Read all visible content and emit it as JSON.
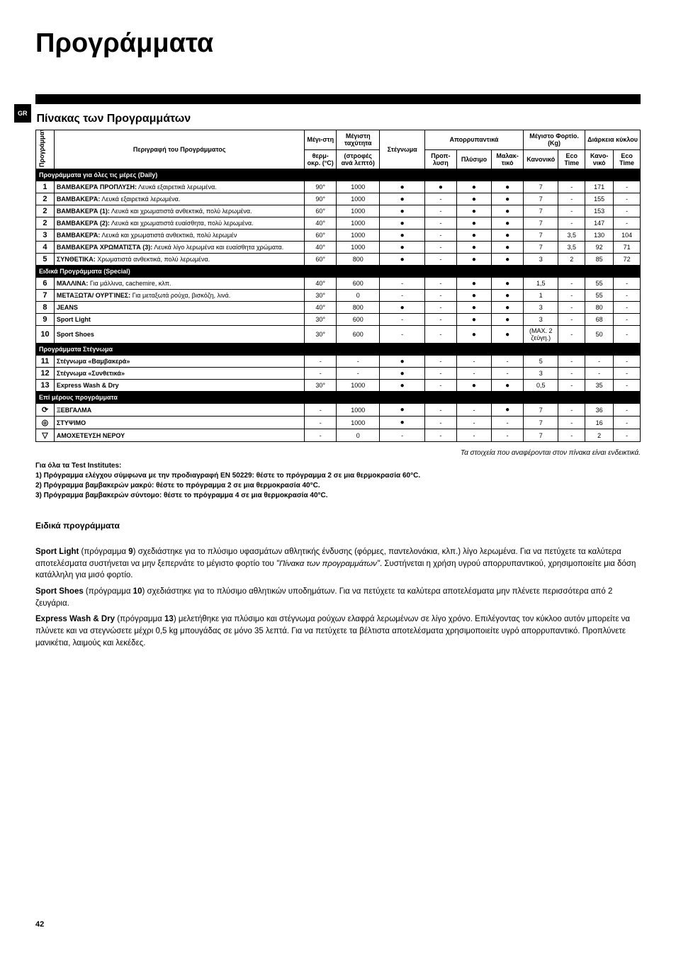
{
  "title": "Προγράμματα",
  "lang_badge": "GR",
  "table_heading": "Πίνακας των Προγραμμάτων",
  "headers": {
    "prog": "Προγράμματα",
    "desc": "Περιγραφή του Προγράμματος",
    "temp_top": "Μέγι-στη",
    "temp_bot": "θερμ-οκρ. (°C)",
    "speed_top": "Μέγιστη ταχύτητα",
    "speed_bot": "(στροφές ανά λεπτό)",
    "dry": "Στέγνωμα",
    "deterg": "Απορρυπαντικά",
    "d1": "Προπ-λυση",
    "d2": "Πλύσιμο",
    "d3": "Μαλακ-τικό",
    "load": "Μέγιστο Φορτίο. (Kg)",
    "l1": "Κανονικό",
    "l2": "Eco Time",
    "dur": "Διάρκεια κύκλου",
    "du1": "Κανο-νικό",
    "du2": "Eco Time"
  },
  "sections": [
    {
      "title": "Προγράμματα για όλες τις μέρες  (Daily)",
      "rows": [
        {
          "n": "1",
          "desc": "ΒΑΜΒΑΚΕΡΆ ΠΡΟΠΛΥΣΗ: Λευκά εξαιρετικά λερωμένα.",
          "temp": "90°",
          "spd": "1000",
          "dry": "●",
          "d1": "●",
          "d2": "●",
          "d3": "●",
          "l1": "7",
          "l2": "-",
          "du1": "171",
          "du2": "-"
        },
        {
          "n": "2",
          "desc": "ΒΑΜΒΑΚΕΡΆ: Λευκά εξαιρετικά λερωμένα.",
          "temp": "90°",
          "spd": "1000",
          "dry": "●",
          "d1": "-",
          "d2": "●",
          "d3": "●",
          "l1": "7",
          "l2": "-",
          "du1": "155",
          "du2": "-"
        },
        {
          "n": "2",
          "desc": "ΒΑΜΒΑΚΕΡΆ (1): Λευκά και χρωματιστά ανθεκτικά, πολύ λερωμένα.",
          "temp": "60°",
          "spd": "1000",
          "dry": "●",
          "d1": "-",
          "d2": "●",
          "d3": "●",
          "l1": "7",
          "l2": "-",
          "du1": "153",
          "du2": "-"
        },
        {
          "n": "2",
          "desc": "ΒΑΜΒΑΚΕΡΆ (2): Λευκά και χρωματιστά ευαίσθητα, πολύ λερωμένα.",
          "temp": "40°",
          "spd": "1000",
          "dry": "●",
          "d1": "-",
          "d2": "●",
          "d3": "●",
          "l1": "7",
          "l2": "-",
          "du1": "147",
          "du2": "-"
        },
        {
          "n": "3",
          "desc": "ΒΑΜΒΑΚΕΡΆ: Λευκά και χρωματιστά ανθεκτικά, πολύ λερωμέν",
          "temp": "60°",
          "spd": "1000",
          "dry": "●",
          "d1": "-",
          "d2": "●",
          "d3": "●",
          "l1": "7",
          "l2": "3,5",
          "du1": "130",
          "du2": "104"
        },
        {
          "n": "4",
          "desc": "ΒΑΜΒΑΚΕΡΆ ΧΡΩΜΑΤΙΣΤΆ (3): Λευκά λίγο λερωμένα και ευαίσθητα χρώματα.",
          "temp": "40°",
          "spd": "1000",
          "dry": "●",
          "d1": "-",
          "d2": "●",
          "d3": "●",
          "l1": "7",
          "l2": "3,5",
          "du1": "92",
          "du2": "71"
        },
        {
          "n": "5",
          "desc": "ΣΥΝΘΕΤΙΚΑ: Χρωματιστά ανθεκτικά, πολύ λερωμένα.",
          "temp": "60°",
          "spd": "800",
          "dry": "●",
          "d1": "-",
          "d2": "●",
          "d3": "●",
          "l1": "3",
          "l2": "2",
          "du1": "85",
          "du2": "72"
        }
      ]
    },
    {
      "title": "Ειδικά Προγράμματα (Special)",
      "rows": [
        {
          "n": "6",
          "desc": "ΜΆΛΛΙΝΑ: Για μάλλινα, cachemire, κλπ.",
          "temp": "40°",
          "spd": "600",
          "dry": "-",
          "d1": "-",
          "d2": "●",
          "d3": "●",
          "l1": "1,5",
          "l2": "-",
          "du1": "55",
          "du2": "-"
        },
        {
          "n": "7",
          "desc": "ΜΕΤΑΞΩΤΆ/ ΟΥΡΤΊΝΕΣ: Για μεταξωτά ρούχα, βισκόζη, λινά.",
          "temp": "30°",
          "spd": "0",
          "dry": "-",
          "d1": "-",
          "d2": "●",
          "d3": "●",
          "l1": "1",
          "l2": "-",
          "du1": "55",
          "du2": "-"
        },
        {
          "n": "8",
          "desc": "JEANS",
          "temp": "40°",
          "spd": "800",
          "dry": "●",
          "d1": "-",
          "d2": "●",
          "d3": "●",
          "l1": "3",
          "l2": "-",
          "du1": "80",
          "du2": "-"
        },
        {
          "n": "9",
          "desc": "Sport Light",
          "temp": "30°",
          "spd": "600",
          "dry": "-",
          "d1": "-",
          "d2": "●",
          "d3": "●",
          "l1": "3",
          "l2": "-",
          "du1": "68",
          "du2": "-"
        },
        {
          "n": "10",
          "desc": "Sport Shoes",
          "temp": "30°",
          "spd": "600",
          "dry": "-",
          "d1": "-",
          "d2": "●",
          "d3": "●",
          "l1": "(MAX. 2 ζεύγη.)",
          "l2": "-",
          "du1": "50",
          "du2": "-"
        }
      ]
    },
    {
      "title": "Προγράμματα Στέγνωμα",
      "rows": [
        {
          "n": "11",
          "desc": "Στέγνωμα «Βαμβακερά»",
          "temp": "-",
          "spd": "-",
          "dry": "●",
          "d1": "-",
          "d2": "-",
          "d3": "-",
          "l1": "5",
          "l2": "-",
          "du1": "-",
          "du2": "-"
        },
        {
          "n": "12",
          "desc": "Στέγνωμα «Συνθετικά»",
          "temp": "-",
          "spd": "-",
          "dry": "●",
          "d1": "-",
          "d2": "-",
          "d3": "-",
          "l1": "3",
          "l2": "-",
          "du1": "-",
          "du2": "-"
        },
        {
          "n": "13",
          "desc": "Express Wash & Dry",
          "temp": "30°",
          "spd": "1000",
          "dry": "●",
          "d1": "-",
          "d2": "●",
          "d3": "●",
          "l1": "0,5",
          "l2": "-",
          "du1": "35",
          "du2": "-"
        }
      ]
    },
    {
      "title": "Επί μέρους προγράμματα",
      "rows": [
        {
          "n": "⟳",
          "desc": "ΞΕΒΓΑΛΜΑ",
          "temp": "-",
          "spd": "1000",
          "dry": "●",
          "d1": "-",
          "d2": "-",
          "d3": "●",
          "l1": "7",
          "l2": "-",
          "du1": "36",
          "du2": "-"
        },
        {
          "n": "◎",
          "desc": "ΣΤΥΨΙΜΟ",
          "temp": "-",
          "spd": "1000",
          "dry": "●",
          "d1": "-",
          "d2": "-",
          "d3": "-",
          "l1": "7",
          "l2": "-",
          "du1": "16",
          "du2": "-"
        },
        {
          "n": "▽",
          "desc": "ΑΜΟΧΕΤΕΥΣΗ ΝΕΡΟΥ",
          "temp": "-",
          "spd": "0",
          "dry": "-",
          "d1": "-",
          "d2": "-",
          "d3": "-",
          "l1": "7",
          "l2": "-",
          "du1": "2",
          "du2": "-"
        }
      ]
    }
  ],
  "italic_note": "Τα στοιχεία που αναφέρονται στον πίνακα είναι ενδεικτικά.",
  "test_title": "Για όλα τα Test Institutes:",
  "test_lines": [
    "1) Πρόγραμμα ελέγχου σύμφωνα με την προδιαγραφή EN 50229: θέστε το πρόγραμμα 2 σε μια θερμοκρασία 60°C.",
    "2) Πρόγραμμα βαμβακερών μακρύ: θέστε το πρόγραμμα 2 σε μια θερμοκρασία 40°C.",
    "3) Πρόγραμμα βαμβακερών σύντομο: θέστε το πρόγραμμα 4 σε μια θερμοκρασία 40°C."
  ],
  "section2_title": "Ειδικά προγράμματα",
  "paragraphs": [
    "<b>Sport Light</b> (πρόγραμμα <b>9</b>) σχεδιάστηκε για το πλύσιμο υφασμάτων αθλητικής ένδυσης (φόρμες, παντελονάκια, κλπ.) λίγο λερωμένα. Για να πετύχετε τα καλύτερα αποτελέσματα συστήνεται να μην ξεπερνάτε το μέγιστο φορτίο του <i>\"Πίνακα των προγραμμάτων\"</i>. Συστήνεται η χρήση υγρού απορρυπαντικού, χρησιμοποιείτε μια δόση κατάλληλη για μισό φορτίο.",
    "<b>Sport Shoes</b> (πρόγραμμα <b>10</b>) σχεδιάστηκε για το πλύσιμο αθλητικών υποδημάτων. Για να πετύχετε τα καλύτερα αποτελέσματα μην πλένετε περισσότερα από 2 ζευγάρια.",
    "<b>Express Wash & Dry</b> (πρόγραμμα <b>13</b>) μελετήθηκε για πλύσιμο και στέγνωμα ρούχων ελαφρά λερωμένων σε λίγο χρόνο. Επιλέγοντας τον κύκλοο αυτόν μπορείτε να πλύνετε και να στεγνώσετε μέχρι 0,5 kg μπουγάδας σε μόνο 35 λεπτά. Για να πετύχετε τα βέλτιστα αποτελέσματα χρησιμοποιείτε υγρό απορρυπαντικό. Προπλύνετε μανικέτια, λαιμούς και λεκέδες."
  ],
  "pagenum": "42"
}
